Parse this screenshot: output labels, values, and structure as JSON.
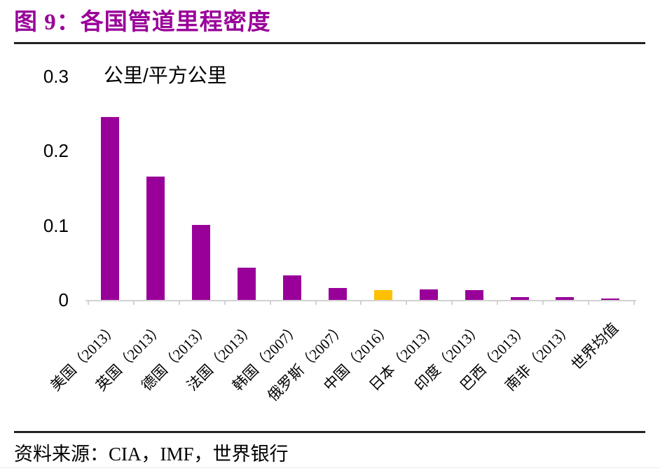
{
  "figure": {
    "title": "图 9：各国管道里程密度",
    "source_note": "资料来源：CIA，IMF，世界银行"
  },
  "chart_data": {
    "type": "bar",
    "title": "图 9：各国管道里程密度",
    "unit_label": "公里/平方公里",
    "ylabel": "公里/平方公里",
    "xlabel": "",
    "categories": [
      "美国（2013）",
      "英国（2013）",
      "德国（2013）",
      "法国（2013）",
      "韩国（2007）",
      "俄罗斯（2007）",
      "中国（2016）",
      "日本（2013）",
      "印度（2013）",
      "巴西（2013）",
      "南非（2013）",
      "世界均值"
    ],
    "values": [
      0.245,
      0.165,
      0.1,
      0.043,
      0.033,
      0.016,
      0.013,
      0.014,
      0.013,
      0.004,
      0.004,
      0.002
    ],
    "highlight_index": 6,
    "ylim": [
      0,
      0.3
    ],
    "yticks": [
      0,
      0.1,
      0.2,
      0.3
    ],
    "ytick_labels": [
      "0",
      "0.1",
      "0.2",
      "0.3"
    ],
    "grid": false,
    "legend": "none",
    "colors": {
      "bar": "#990099",
      "highlight_bar": "#ffc000",
      "axis_line": "#d2d2d2",
      "title_text": "#990099",
      "divider": "#222222",
      "label_text": "#000000"
    }
  }
}
